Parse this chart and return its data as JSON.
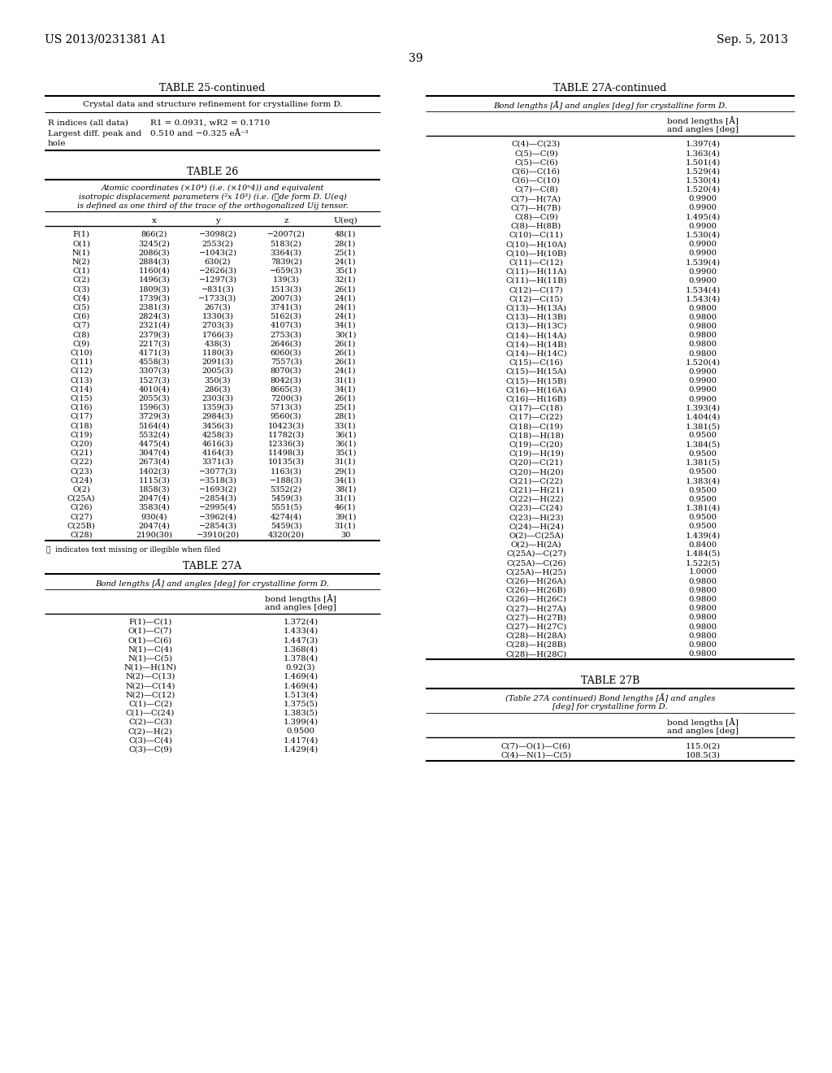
{
  "page_header_left": "US 2013/0231381 A1",
  "page_header_right": "Sep. 5, 2013",
  "page_number": "39",
  "bg_color": "#ffffff",
  "table25_title": "TABLE 25-continued",
  "table25_subtitle": "Crystal data and structure refinement for crystalline form D.",
  "table26_title": "TABLE 26",
  "table26_subtitle_lines": [
    "Atomic coordinates (×10⁴) (i.e. (×10ⁿ4)) and equivalent",
    "isotropic displacement parameters (²x 10³) (i.e. (Ⓨde form D. U(eq)",
    "is defined as one third of the trace of the orthogonalized Uij tensor."
  ],
  "table26_headers": [
    "",
    "x",
    "y",
    "z",
    "U(eq)"
  ],
  "table26_rows": [
    [
      "F(1)",
      "866(2)",
      "−3098(2)",
      "−2007(2)",
      "48(1)"
    ],
    [
      "O(1)",
      "3245(2)",
      "2553(2)",
      "5183(2)",
      "28(1)"
    ],
    [
      "N(1)",
      "2086(3)",
      "−1043(2)",
      "3364(3)",
      "25(1)"
    ],
    [
      "N(2)",
      "2884(3)",
      "630(2)",
      "7839(2)",
      "24(1)"
    ],
    [
      "C(1)",
      "1160(4)",
      "−2626(3)",
      "−659(3)",
      "35(1)"
    ],
    [
      "C(2)",
      "1496(3)",
      "−1297(3)",
      "139(3)",
      "32(1)"
    ],
    [
      "C(3)",
      "1809(3)",
      "−831(3)",
      "1513(3)",
      "26(1)"
    ],
    [
      "C(4)",
      "1739(3)",
      "−1733(3)",
      "2007(3)",
      "24(1)"
    ],
    [
      "C(5)",
      "2381(3)",
      "267(3)",
      "3741(3)",
      "24(1)"
    ],
    [
      "C(6)",
      "2824(3)",
      "1330(3)",
      "5162(3)",
      "24(1)"
    ],
    [
      "C(7)",
      "2321(4)",
      "2703(3)",
      "4107(3)",
      "34(1)"
    ],
    [
      "C(8)",
      "2379(3)",
      "1766(3)",
      "2753(3)",
      "30(1)"
    ],
    [
      "C(9)",
      "2217(3)",
      "438(3)",
      "2646(3)",
      "26(1)"
    ],
    [
      "C(10)",
      "4171(3)",
      "1180(3)",
      "6060(3)",
      "26(1)"
    ],
    [
      "C(11)",
      "4558(3)",
      "2091(3)",
      "7557(3)",
      "26(1)"
    ],
    [
      "C(12)",
      "3307(3)",
      "2005(3)",
      "8070(3)",
      "24(1)"
    ],
    [
      "C(13)",
      "1527(3)",
      "350(3)",
      "8042(3)",
      "31(1)"
    ],
    [
      "C(14)",
      "4010(4)",
      "286(3)",
      "8665(3)",
      "34(1)"
    ],
    [
      "C(15)",
      "2055(3)",
      "2303(3)",
      "7200(3)",
      "26(1)"
    ],
    [
      "C(16)",
      "1596(3)",
      "1359(3)",
      "5713(3)",
      "25(1)"
    ],
    [
      "C(17)",
      "3729(3)",
      "2984(3)",
      "9560(3)",
      "28(1)"
    ],
    [
      "C(18)",
      "5164(4)",
      "3456(3)",
      "10423(3)",
      "33(1)"
    ],
    [
      "C(19)",
      "5532(4)",
      "4258(3)",
      "11782(3)",
      "36(1)"
    ],
    [
      "C(20)",
      "4475(4)",
      "4616(3)",
      "12336(3)",
      "36(1)"
    ],
    [
      "C(21)",
      "3047(4)",
      "4164(3)",
      "11498(3)",
      "35(1)"
    ],
    [
      "C(22)",
      "2673(4)",
      "3371(3)",
      "10135(3)",
      "31(1)"
    ],
    [
      "C(23)",
      "1402(3)",
      "−3077(3)",
      "1163(3)",
      "29(1)"
    ],
    [
      "C(24)",
      "1115(3)",
      "−3518(3)",
      "−188(3)",
      "34(1)"
    ],
    [
      "O(2)",
      "1858(3)",
      "−1693(2)",
      "5352(2)",
      "38(1)"
    ],
    [
      "C(25A)",
      "2047(4)",
      "−2854(3)",
      "5459(3)",
      "31(1)"
    ],
    [
      "C(26)",
      "3583(4)",
      "−2995(4)",
      "5551(5)",
      "46(1)"
    ],
    [
      "C(27)",
      "930(4)",
      "−3962(4)",
      "4274(4)",
      "39(1)"
    ],
    [
      "C(25B)",
      "2047(4)",
      "−2854(3)",
      "5459(3)",
      "31(1)"
    ],
    [
      "C(28)",
      "2190(30)",
      "−3910(20)",
      "4320(20)",
      "30"
    ]
  ],
  "table26_footnote": "Ⓩ  indicates text missing or illegible when filed",
  "table27a_title": "TABLE 27A",
  "table27a_subtitle": "Bond lengths [Å] and angles [deg] for crystalline form D.",
  "table27a_col_header": "bond lengths [Å]\nand angles [deg]",
  "table27a_rows": [
    [
      "F(1)—C(1)",
      "1.372(4)"
    ],
    [
      "O(1)—C(7)",
      "1.433(4)"
    ],
    [
      "O(1)—C(6)",
      "1.447(3)"
    ],
    [
      "N(1)—C(4)",
      "1.368(4)"
    ],
    [
      "N(1)—C(5)",
      "1.378(4)"
    ],
    [
      "N(1)—H(1N)",
      "0.92(3)"
    ],
    [
      "N(2)—C(13)",
      "1.469(4)"
    ],
    [
      "N(2)—C(14)",
      "1.469(4)"
    ],
    [
      "N(2)—C(12)",
      "1.513(4)"
    ],
    [
      "C(1)—C(2)",
      "1.375(5)"
    ],
    [
      "C(1)—C(24)",
      "1.383(5)"
    ],
    [
      "C(2)—C(3)",
      "1.399(4)"
    ],
    [
      "C(2)—H(2)",
      "0.9500"
    ],
    [
      "C(3)—C(4)",
      "1.417(4)"
    ],
    [
      "C(3)—C(9)",
      "1.429(4)"
    ]
  ],
  "table27a_cont_title": "TABLE 27A-continued",
  "table27a_cont_subtitle": "Bond lengths [Å] and angles [deg] for crystalline form D.",
  "table27a_cont_col_header": "bond lengths [Å]\nand angles [deg]",
  "table27a_cont_rows": [
    [
      "C(4)—C(23)",
      "1.397(4)"
    ],
    [
      "C(5)—C(9)",
      "1.363(4)"
    ],
    [
      "C(5)—C(6)",
      "1.501(4)"
    ],
    [
      "C(6)—C(16)",
      "1.529(4)"
    ],
    [
      "C(6)—C(10)",
      "1.530(4)"
    ],
    [
      "C(7)—C(8)",
      "1.520(4)"
    ],
    [
      "C(7)—H(7A)",
      "0.9900"
    ],
    [
      "C(7)—H(7B)",
      "0.9900"
    ],
    [
      "C(8)—C(9)",
      "1.495(4)"
    ],
    [
      "C(8)—H(8B)",
      "0.9900"
    ],
    [
      "C(10)—C(11)",
      "1.530(4)"
    ],
    [
      "C(10)—H(10A)",
      "0.9900"
    ],
    [
      "C(10)—H(10B)",
      "0.9900"
    ],
    [
      "C(11)—C(12)",
      "1.539(4)"
    ],
    [
      "C(11)—H(11A)",
      "0.9900"
    ],
    [
      "C(11)—H(11B)",
      "0.9900"
    ],
    [
      "C(12)—C(17)",
      "1.534(4)"
    ],
    [
      "C(12)—C(15)",
      "1.543(4)"
    ],
    [
      "C(13)—H(13A)",
      "0.9800"
    ],
    [
      "C(13)—H(13B)",
      "0.9800"
    ],
    [
      "C(13)—H(13C)",
      "0.9800"
    ],
    [
      "C(14)—H(14A)",
      "0.9800"
    ],
    [
      "C(14)—H(14B)",
      "0.9800"
    ],
    [
      "C(14)—H(14C)",
      "0.9800"
    ],
    [
      "C(15)—C(16)",
      "1.520(4)"
    ],
    [
      "C(15)—H(15A)",
      "0.9900"
    ],
    [
      "C(15)—H(15B)",
      "0.9900"
    ],
    [
      "C(16)—H(16A)",
      "0.9900"
    ],
    [
      "C(16)—H(16B)",
      "0.9900"
    ],
    [
      "C(17)—C(18)",
      "1.393(4)"
    ],
    [
      "C(17)—C(22)",
      "1.404(4)"
    ],
    [
      "C(18)—C(19)",
      "1.381(5)"
    ],
    [
      "C(18)—H(18)",
      "0.9500"
    ],
    [
      "C(19)—C(20)",
      "1.384(5)"
    ],
    [
      "C(19)—H(19)",
      "0.9500"
    ],
    [
      "C(20)—C(21)",
      "1.381(5)"
    ],
    [
      "C(20)—H(20)",
      "0.9500"
    ],
    [
      "C(21)—C(22)",
      "1.383(4)"
    ],
    [
      "C(21)—H(21)",
      "0.9500"
    ],
    [
      "C(22)—H(22)",
      "0.9500"
    ],
    [
      "C(23)—C(24)",
      "1.381(4)"
    ],
    [
      "C(23)—H(23)",
      "0.9500"
    ],
    [
      "C(24)—H(24)",
      "0.9500"
    ],
    [
      "O(2)—C(25A)",
      "1.439(4)"
    ],
    [
      "O(2)—H(2A)",
      "0.8400"
    ],
    [
      "C(25A)—C(27)",
      "1.484(5)"
    ],
    [
      "C(25A)—C(26)",
      "1.522(5)"
    ],
    [
      "C(25A)—H(25)",
      "1.0000"
    ],
    [
      "C(26)—H(26A)",
      "0.9800"
    ],
    [
      "C(26)—H(26B)",
      "0.9800"
    ],
    [
      "C(26)—H(26C)",
      "0.9800"
    ],
    [
      "C(27)—H(27A)",
      "0.9800"
    ],
    [
      "C(27)—H(27B)",
      "0.9800"
    ],
    [
      "C(27)—H(27C)",
      "0.9800"
    ],
    [
      "C(28)—H(28A)",
      "0.9800"
    ],
    [
      "C(28)—H(28B)",
      "0.9800"
    ],
    [
      "C(28)—H(28C)",
      "0.9800"
    ]
  ],
  "table27b_title": "TABLE 27B",
  "table27b_subtitle_lines": [
    "(Table 27A continued) Bond lengths [Å] and angles",
    "[deg] for crystalline form D."
  ],
  "table27b_col_header": "bond lengths [Å]\nand angles [deg]",
  "table27b_rows": [
    [
      "C(7)—O(1)—C(6)",
      "115.0(2)"
    ],
    [
      "C(4)—N(1)—C(5)",
      "108.5(3)"
    ]
  ]
}
